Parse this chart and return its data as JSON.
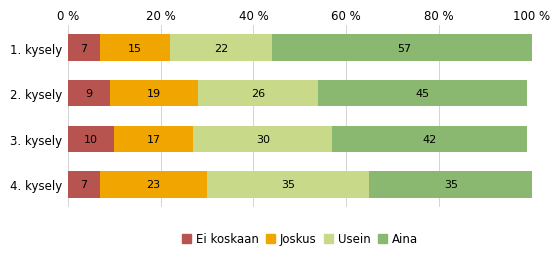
{
  "categories": [
    "1. kysely",
    "2. kysely",
    "3. kysely",
    "4. kysely"
  ],
  "series": {
    "Ei koskaan": [
      7,
      9,
      10,
      7
    ],
    "Joskus": [
      15,
      19,
      17,
      23
    ],
    "Usein": [
      22,
      26,
      30,
      35
    ],
    "Aina": [
      57,
      45,
      42,
      35
    ]
  },
  "colors": {
    "Ei koskaan": "#b85450",
    "Joskus": "#f0a500",
    "Usein": "#c8d98a",
    "Aina": "#8ab870"
  },
  "xlim": [
    0,
    100
  ],
  "xticks": [
    0,
    20,
    40,
    60,
    80,
    100
  ],
  "xticklabels": [
    "0 %",
    "20 %",
    "40 %",
    "60 %",
    "80 %",
    "100 %"
  ],
  "bar_height": 0.58,
  "background_color": "#ffffff",
  "legend_labels": [
    "Ei koskaan",
    "Joskus",
    "Usein",
    "Aina"
  ],
  "text_fontsize": 8.0,
  "label_fontsize": 8.5,
  "tick_fontsize": 8.5
}
